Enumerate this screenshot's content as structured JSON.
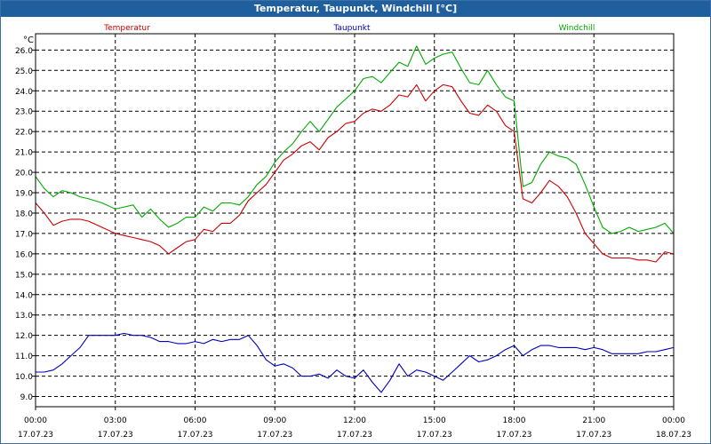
{
  "window": {
    "title": "Temperatur, Taupunkt, Windchill [°C]"
  },
  "chart_data": {
    "type": "line",
    "title": "Temperatur, Taupunkt, Windchill [°C]",
    "ylabel": "°C",
    "xlabel": "",
    "ylim": [
      8.5,
      26.8
    ],
    "xlim": [
      0,
      24
    ],
    "grid": true,
    "legend_placement": "top",
    "y_ticks": [
      9,
      10,
      11,
      12,
      13,
      14,
      15,
      16,
      17,
      18,
      19,
      20,
      21,
      22,
      23,
      24,
      25,
      26
    ],
    "x_ticks": [
      {
        "x": 0,
        "time": "00:00",
        "date": "17.07.23"
      },
      {
        "x": 3,
        "time": "03:00",
        "date": "17.07.23"
      },
      {
        "x": 6,
        "time": "06:00",
        "date": "17.07.23"
      },
      {
        "x": 9,
        "time": "09:00",
        "date": "17.07.23"
      },
      {
        "x": 12,
        "time": "12:00",
        "date": "17.07.23"
      },
      {
        "x": 15,
        "time": "15:00",
        "date": "17.07.23"
      },
      {
        "x": 18,
        "time": "18:00",
        "date": "17.07.23"
      },
      {
        "x": 21,
        "time": "21:00",
        "date": "17.07.23"
      },
      {
        "x": 24,
        "time": "00:00",
        "date": "18.07.23"
      }
    ],
    "series": [
      {
        "name": "Temperatur",
        "color": "#cc0000",
        "x": [
          0,
          0.33,
          0.67,
          1,
          1.33,
          1.67,
          2,
          2.5,
          3,
          3.33,
          3.67,
          4,
          4.33,
          4.67,
          5,
          5.33,
          5.67,
          6,
          6.33,
          6.67,
          7,
          7.33,
          7.67,
          8,
          8.33,
          8.67,
          9,
          9.33,
          9.67,
          10,
          10.33,
          10.67,
          11,
          11.33,
          11.67,
          12,
          12.33,
          12.67,
          13,
          13.33,
          13.67,
          14,
          14.33,
          14.67,
          15,
          15.33,
          15.67,
          16,
          16.33,
          16.67,
          17,
          17.33,
          17.67,
          18,
          18.33,
          18.67,
          19,
          19.33,
          19.67,
          20,
          20.33,
          20.67,
          21,
          21.33,
          21.67,
          22,
          22.33,
          22.67,
          23,
          23.33,
          23.67,
          24
        ],
        "values": [
          18.5,
          18.0,
          17.4,
          17.6,
          17.7,
          17.7,
          17.6,
          17.3,
          17.0,
          16.9,
          16.8,
          16.7,
          16.6,
          16.4,
          16.0,
          16.3,
          16.6,
          16.7,
          17.2,
          17.1,
          17.5,
          17.5,
          17.9,
          18.6,
          19.0,
          19.4,
          20.0,
          20.6,
          20.9,
          21.3,
          21.5,
          21.1,
          21.7,
          22.0,
          22.4,
          22.5,
          22.9,
          23.1,
          23.0,
          23.3,
          23.8,
          23.7,
          24.3,
          23.5,
          24.0,
          24.3,
          24.2,
          23.5,
          22.9,
          22.8,
          23.3,
          23.0,
          22.3,
          22.0,
          18.7,
          18.5,
          19.0,
          19.6,
          19.3,
          18.8,
          18.0,
          17.0,
          16.5,
          16.0,
          15.8,
          15.8,
          15.8,
          15.7,
          15.7,
          15.6,
          16.1,
          16.0
        ]
      },
      {
        "name": "Taupunkt",
        "color": "#0000bb",
        "x": [
          0,
          0.33,
          0.67,
          1,
          1.33,
          1.67,
          2,
          2.33,
          2.67,
          3,
          3.33,
          3.67,
          4,
          4.33,
          4.67,
          5,
          5.33,
          5.67,
          6,
          6.33,
          6.67,
          7,
          7.33,
          7.67,
          8,
          8.33,
          8.67,
          9,
          9.33,
          9.67,
          10,
          10.33,
          10.67,
          11,
          11.33,
          11.67,
          12,
          12.33,
          12.67,
          13,
          13.33,
          13.67,
          14,
          14.33,
          14.67,
          15,
          15.33,
          15.67,
          16,
          16.33,
          16.67,
          17,
          17.33,
          17.67,
          18,
          18.33,
          18.67,
          19,
          19.33,
          19.67,
          20,
          20.33,
          20.67,
          21,
          21.33,
          21.67,
          22,
          22.33,
          22.67,
          23,
          23.33,
          23.67,
          24
        ],
        "values": [
          10.2,
          10.2,
          10.3,
          10.6,
          11.0,
          11.4,
          12.0,
          12.0,
          12.0,
          12.0,
          12.1,
          12.0,
          12.0,
          11.9,
          11.7,
          11.7,
          11.6,
          11.6,
          11.7,
          11.6,
          11.8,
          11.7,
          11.8,
          11.8,
          12.0,
          11.5,
          10.8,
          10.5,
          10.6,
          10.4,
          10.0,
          10.0,
          10.1,
          9.9,
          10.3,
          10.0,
          9.9,
          10.3,
          9.7,
          9.2,
          9.8,
          10.6,
          10.0,
          10.3,
          10.2,
          10.0,
          9.8,
          10.2,
          10.6,
          11.0,
          10.7,
          10.8,
          11.0,
          11.3,
          11.5,
          11.0,
          11.3,
          11.5,
          11.5,
          11.4,
          11.4,
          11.4,
          11.3,
          11.4,
          11.3,
          11.1,
          11.1,
          11.1,
          11.1,
          11.2,
          11.2,
          11.3,
          11.4
        ]
      },
      {
        "name": "Windchill",
        "color": "#00aa00",
        "x": [
          0,
          0.33,
          0.67,
          1,
          1.33,
          1.67,
          2,
          2.5,
          3,
          3.33,
          3.67,
          4,
          4.33,
          4.67,
          5,
          5.33,
          5.67,
          6,
          6.33,
          6.67,
          7,
          7.33,
          7.67,
          8,
          8.33,
          8.67,
          9,
          9.33,
          9.67,
          10,
          10.33,
          10.67,
          11,
          11.33,
          11.67,
          12,
          12.33,
          12.67,
          13,
          13.33,
          13.67,
          14,
          14.33,
          14.67,
          15,
          15.33,
          15.67,
          16,
          16.33,
          16.67,
          17,
          17.33,
          17.67,
          18,
          18.33,
          18.67,
          19,
          19.33,
          19.67,
          20,
          20.33,
          20.67,
          21,
          21.33,
          21.67,
          22,
          22.33,
          22.67,
          23,
          23.33,
          23.67,
          24
        ],
        "values": [
          19.8,
          19.2,
          18.8,
          19.1,
          19.0,
          18.8,
          18.7,
          18.5,
          18.2,
          18.3,
          18.4,
          17.8,
          18.2,
          17.7,
          17.3,
          17.5,
          17.8,
          17.8,
          18.3,
          18.1,
          18.5,
          18.5,
          18.4,
          18.8,
          19.4,
          19.8,
          20.5,
          21.0,
          21.4,
          22.0,
          22.5,
          22.0,
          22.6,
          23.2,
          23.6,
          24.0,
          24.6,
          24.7,
          24.4,
          24.9,
          25.4,
          25.2,
          26.2,
          25.3,
          25.6,
          25.8,
          25.9,
          25.1,
          24.4,
          24.3,
          25.0,
          24.3,
          23.7,
          23.5,
          19.3,
          19.5,
          20.4,
          21.0,
          20.8,
          20.7,
          20.4,
          19.4,
          18.3,
          17.3,
          17.0,
          17.1,
          17.3,
          17.1,
          17.2,
          17.3,
          17.5,
          17.0
        ]
      }
    ]
  }
}
